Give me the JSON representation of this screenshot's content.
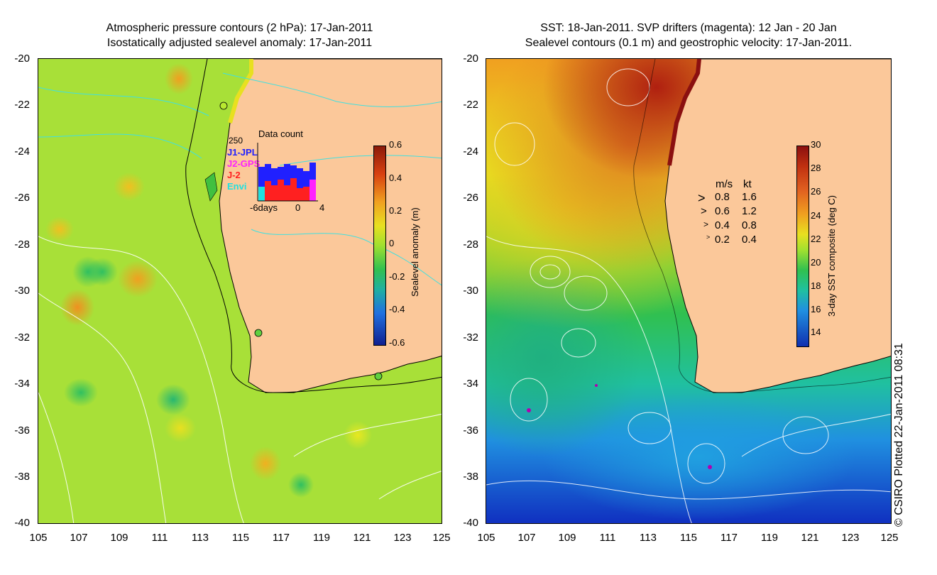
{
  "left_panel": {
    "title_line1": "Atmospheric pressure contours (2 hPa): 17-Jan-2011",
    "title_line2": "Isostatically adjusted sealevel anomaly: 17-Jan-2011",
    "colorbar": {
      "title": "Sealevel anomaly (m)",
      "ticks": [
        "0.6",
        "0.4",
        "0.2",
        "0",
        "-0.2",
        "-0.4",
        "-0.6"
      ]
    },
    "inset": {
      "title": "Data count",
      "y_max": "250",
      "missions": [
        {
          "name": "J1-JPL",
          "color": "#2020ff"
        },
        {
          "name": "J2-GPS",
          "color": "#ff20ff"
        },
        {
          "name": "J-2",
          "color": "#ff2020"
        },
        {
          "name": "Envi",
          "color": "#20e0e0"
        }
      ],
      "x_ticks": [
        "-6days",
        "0",
        "4"
      ]
    }
  },
  "right_panel": {
    "title_line1": "SST: 18-Jan-2011. SVP drifters (magenta): 12 Jan - 20 Jan",
    "title_line2": "Sealevel contours (0.1 m) and geostrophic velocity: 17-Jan-2011.",
    "colorbar": {
      "title": "3-day SST composite (deg C)",
      "ticks": [
        "30",
        "28",
        "26",
        "24",
        "22",
        "20",
        "18",
        "16",
        "14"
      ]
    },
    "velocity_legend": {
      "header_ms": "m/s",
      "header_kt": "kt",
      "rows": [
        {
          "ms": "0.8",
          "kt": "1.6"
        },
        {
          "ms": "0.6",
          "kt": "1.2"
        },
        {
          "ms": "0.4",
          "kt": "0.8"
        },
        {
          "ms": "0.2",
          "kt": "0.4"
        }
      ]
    }
  },
  "axes": {
    "y_ticks": [
      "-20",
      "-22",
      "-24",
      "-26",
      "-28",
      "-30",
      "-32",
      "-34",
      "-36",
      "-38",
      "-40"
    ],
    "x_ticks": [
      "105",
      "107",
      "109",
      "111",
      "113",
      "115",
      "117",
      "119",
      "121",
      "123",
      "125"
    ]
  },
  "copyright": "© CSIRO Plotted 22-Jan-2011 08:31",
  "colors": {
    "land": "#fbc89a",
    "sst_warm": "#a01010",
    "sst_cool": "#1030b0",
    "sla_base": "#b8e830"
  }
}
